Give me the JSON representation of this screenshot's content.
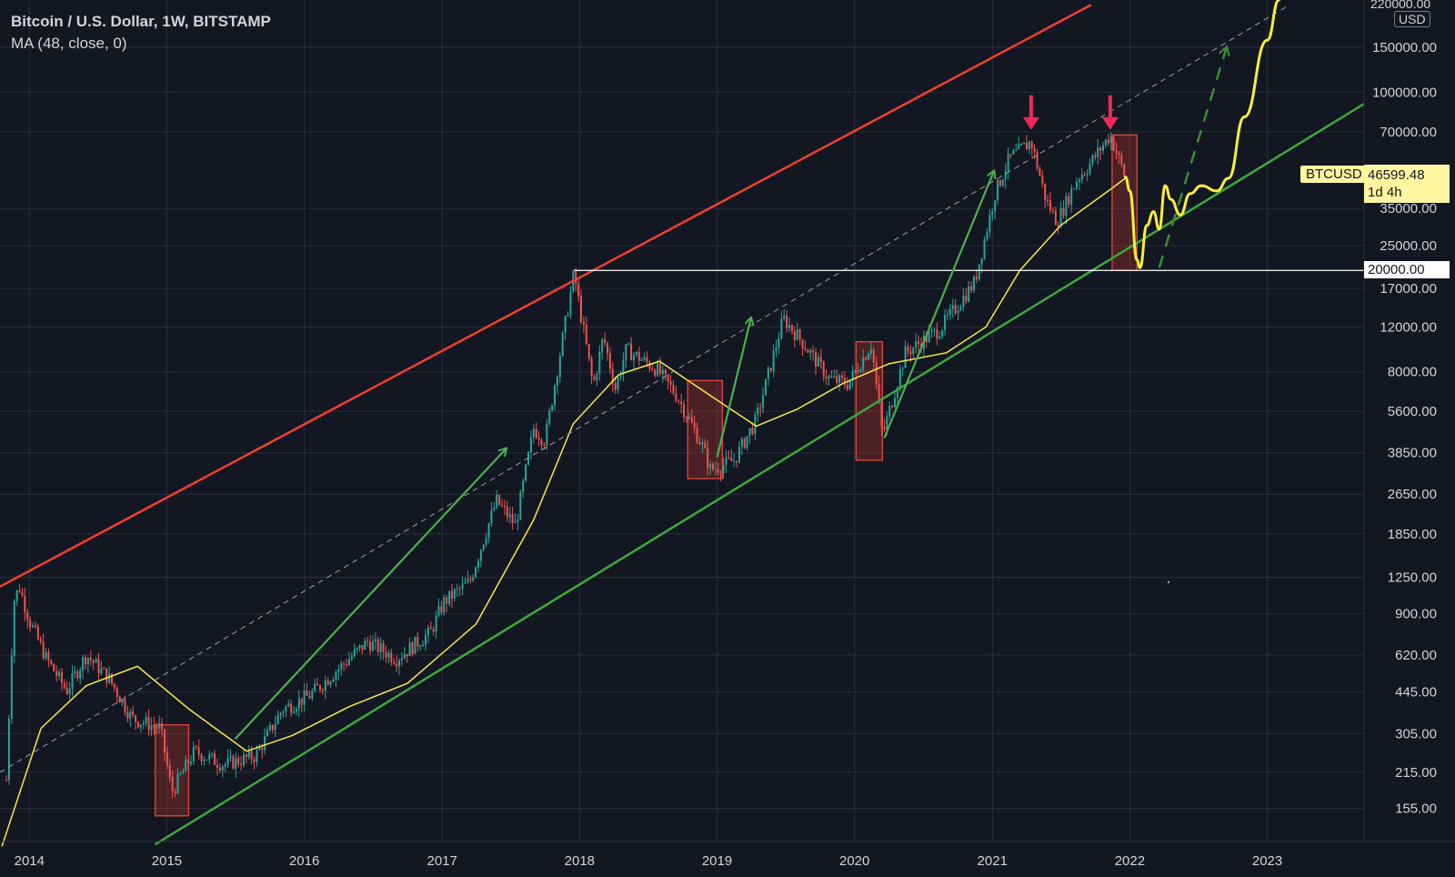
{
  "header": {
    "symbol_line": "Bitcoin / U.S. Dollar, 1W, BITSTAMP",
    "indicator_line": "MA (48, close, 0)"
  },
  "axis": {
    "unit": "USD",
    "top_label": "220000.00",
    "price_ticks": [
      "150000.00",
      "100000.00",
      "70000.00",
      "35000.00",
      "25000.00",
      "17000.00",
      "12000.00",
      "8000.00",
      "5600.00",
      "3850.00",
      "2650.00",
      "1850.00",
      "1250.00",
      "900.00",
      "620.00",
      "445.00",
      "305.00",
      "215.00",
      "155.00"
    ],
    "price_tick_values": [
      150000,
      100000,
      70000,
      35000,
      25000,
      17000,
      12000,
      8000,
      5600,
      3850,
      2650,
      1850,
      1250,
      900,
      620,
      445,
      305,
      215,
      155
    ],
    "year_labels": [
      "2014",
      "2015",
      "2016",
      "2017",
      "2018",
      "2019",
      "2020",
      "2021",
      "2022",
      "2023"
    ]
  },
  "tags": {
    "symbol": "BTCUSD",
    "last_price": "46599.48",
    "countdown": "1d 4h",
    "level": "20000.00"
  },
  "colors": {
    "background": "#131722",
    "grid": "#2a2e39",
    "up_candle": "#26a69a",
    "down_candle": "#ef5350",
    "ma": "#f5e94b",
    "resistance": "#f23f32",
    "support": "#3fa83a",
    "arrow_green": "#4caf50",
    "marker_red": "#f0285a",
    "projection": "#f7ef3c"
  },
  "chart_data": {
    "type": "candlestick",
    "title": "Bitcoin / U.S. Dollar, 1W, BITSTAMP",
    "scale": "log",
    "ylim": [
      115,
      230000
    ],
    "xlim": [
      "2013-10-15",
      "2023-09-15"
    ],
    "series": [
      {
        "name": "BTCUSD",
        "kind": "price",
        "x": [
          "2013-11-01",
          "2013-11-20",
          "2013-12-05",
          "2014-01-01",
          "2014-02-15",
          "2014-04-10",
          "2014-06-01",
          "2014-08-01",
          "2014-10-01",
          "2014-12-15",
          "2015-01-14",
          "2015-03-15",
          "2015-06-01",
          "2015-08-25",
          "2015-11-04",
          "2016-01-15",
          "2016-06-17",
          "2016-09-01",
          "2016-12-01",
          "2017-01-05",
          "2017-03-15",
          "2017-05-25",
          "2017-07-15",
          "2017-09-01",
          "2017-10-01",
          "2017-12-17",
          "2018-02-06",
          "2018-03-05",
          "2018-04-06",
          "2018-05-05",
          "2018-07-25",
          "2018-09-15",
          "2018-11-20",
          "2018-12-15",
          "2019-02-15",
          "2019-04-15",
          "2019-06-26",
          "2019-08-15",
          "2019-10-26",
          "2019-12-15",
          "2020-02-15",
          "2020-03-15",
          "2020-05-15",
          "2020-08-15",
          "2020-11-15",
          "2021-01-08",
          "2021-02-15",
          "2021-04-14",
          "2021-05-23",
          "2021-06-22",
          "2021-08-15",
          "2021-09-07",
          "2021-11-10",
          "2021-12-20"
        ],
        "values": [
          200,
          1000,
          1150,
          850,
          600,
          450,
          620,
          500,
          350,
          320,
          180,
          260,
          230,
          250,
          380,
          430,
          700,
          600,
          760,
          1000,
          1200,
          2500,
          2000,
          4800,
          4300,
          19500,
          7000,
          11000,
          6900,
          9800,
          8200,
          6500,
          4200,
          3300,
          3600,
          5200,
          13000,
          10500,
          7500,
          7200,
          10300,
          4500,
          9500,
          11800,
          18000,
          40000,
          55000,
          64000,
          38000,
          31000,
          46000,
          50000,
          68000,
          46599
        ]
      },
      {
        "name": "MA (48, close, 0)",
        "kind": "ma",
        "x": [
          "2013-10-20",
          "2014-02-01",
          "2014-06-01",
          "2014-10-15",
          "2015-03-01",
          "2015-08-01",
          "2015-12-01",
          "2016-05-01",
          "2016-10-01",
          "2017-04-01",
          "2017-09-01",
          "2017-12-15",
          "2018-04-15",
          "2018-08-01",
          "2019-01-01",
          "2019-04-15",
          "2019-08-01",
          "2019-12-01",
          "2020-04-01",
          "2020-09-01",
          "2020-12-15",
          "2021-03-15",
          "2021-07-01",
          "2021-11-15",
          "2021-12-20"
        ],
        "values": [
          110,
          320,
          470,
          560,
          380,
          260,
          300,
          390,
          480,
          820,
          2100,
          5000,
          7800,
          8800,
          6200,
          4900,
          5700,
          7200,
          8600,
          9500,
          12000,
          20000,
          30000,
          42000,
          46000
        ]
      }
    ],
    "annotations": [
      {
        "type": "resistance_line",
        "from": [
          "2013-10-15",
          1150
        ],
        "to": [
          "2021-09-20",
          220000
        ]
      },
      {
        "type": "support_line",
        "from": [
          "2014-12-01",
          112
        ],
        "to": [
          "2023-09-15",
          90000
        ]
      },
      {
        "type": "dashed_midline",
        "from": [
          "2013-10-15",
          215
        ],
        "to": [
          "2023-03-01",
          220000
        ]
      },
      {
        "type": "horizontal_level",
        "start": "2017-12-17",
        "value": 20000,
        "label": "20000.00"
      },
      {
        "type": "box",
        "from": [
          "2014-12-01",
          145
        ],
        "to": [
          "2015-02-28",
          330
        ]
      },
      {
        "type": "box",
        "from": [
          "2018-10-15",
          3050
        ],
        "to": [
          "2019-01-15",
          7400
        ]
      },
      {
        "type": "box",
        "from": [
          "2020-01-05",
          3600
        ],
        "to": [
          "2020-03-15",
          10500
        ]
      },
      {
        "type": "box",
        "from": [
          "2021-11-15",
          20000
        ],
        "to": [
          "2022-01-20",
          68000
        ]
      },
      {
        "type": "arrow",
        "from": [
          "2015-07-01",
          290
        ],
        "to": [
          "2017-06-20",
          4000
        ]
      },
      {
        "type": "arrow",
        "from": [
          "2019-01-01",
          3700
        ],
        "to": [
          "2019-04-01",
          13000
        ]
      },
      {
        "type": "arrow",
        "from": [
          "2020-03-20",
          4400
        ],
        "to": [
          "2021-01-05",
          49000
        ]
      },
      {
        "type": "dashed_arrow",
        "from": [
          "2022-03-20",
          20500
        ],
        "to": [
          "2022-09-15",
          150000
        ]
      },
      {
        "type": "marker",
        "at": [
          "2021-04-14",
          70000
        ]
      },
      {
        "type": "marker",
        "at": [
          "2021-11-10",
          70000
        ]
      },
      {
        "type": "projection_path",
        "x": [
          "2021-12-20",
          "2022-01-01",
          "2022-01-20",
          "2022-01-28",
          "2022-02-15",
          "2022-03-05",
          "2022-03-20",
          "2022-04-05",
          "2022-04-20",
          "2022-05-15",
          "2022-06-10",
          "2022-07-10",
          "2022-08-20",
          "2022-09-20",
          "2022-11-01",
          "2023-01-01",
          "2023-02-01"
        ],
        "values": [
          46599,
          41000,
          22000,
          20500,
          30000,
          34000,
          29000,
          43000,
          38000,
          33000,
          40000,
          43000,
          41000,
          46000,
          80000,
          160000,
          230000
        ]
      }
    ]
  }
}
